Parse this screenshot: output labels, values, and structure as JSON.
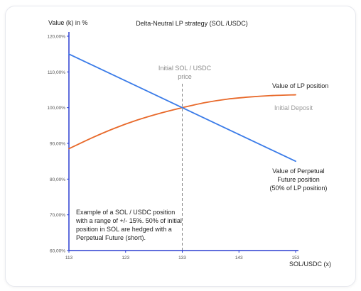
{
  "chart_data": {
    "type": "line",
    "title": "Delta-Neutral LP strategy (SOL /USDC)",
    "xlabel": "SOL/USDC (x)",
    "ylabel": "Value (k) in %",
    "xlim": [
      113,
      153
    ],
    "ylim": [
      60,
      120
    ],
    "x_ticks": [
      "113",
      "123",
      "133",
      "143",
      "153"
    ],
    "y_ticks": [
      "60,00%",
      "70,00%",
      "80,00%",
      "90,00%",
      "100,00%",
      "110,00%",
      "120,00%"
    ],
    "grid": false,
    "series": [
      {
        "name": "Value of LP position",
        "color": "#e8692a",
        "x": [
          113,
          117,
          121,
          125,
          129,
          133,
          137,
          141,
          145,
          149,
          153
        ],
        "values": [
          88.5,
          91.5,
          94.2,
          96.5,
          98.4,
          100.0,
          101.4,
          102.4,
          103.0,
          103.4,
          103.6
        ]
      },
      {
        "name": "Value of Perpetual Future position (50% of LP position)",
        "color": "#3a7be8",
        "x": [
          113,
          133,
          153
        ],
        "values": [
          115.0,
          100.0,
          85.0
        ]
      }
    ],
    "reference_line": {
      "x": 133,
      "label_line1": "Initial SOL / USDC",
      "label_line2": "price",
      "color": "#888888"
    },
    "annotations": {
      "initial_deposit": {
        "text": "Initial Deposit",
        "color": "#9a9a9a"
      },
      "lp_label": "Value of LP position",
      "perp_label_lines": [
        "Value of Perpetual",
        "Future position",
        "(50% of LP position)"
      ],
      "note_lines": [
        "Example of a SOL / USDC position",
        "with a range of +/- 15%. 50% of initial",
        "position in SOL are hedged with a",
        "Perpetual Future (short)."
      ]
    },
    "axis_color": "#2b3fd1"
  }
}
